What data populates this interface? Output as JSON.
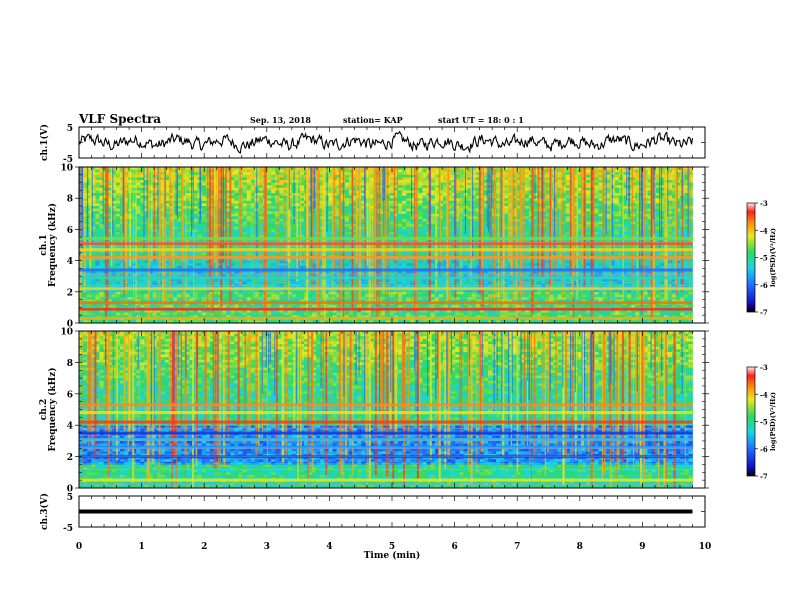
{
  "header": {
    "title": "VLF Spectra",
    "date": "Sep. 13, 2018",
    "station": "station= KAP",
    "start": "start  UT =   18: 0  : 1"
  },
  "chart_data": [
    {
      "type": "line",
      "name": "ch1-waveform",
      "ylabel": "ch.1(V)",
      "ylim": [
        -5,
        5
      ],
      "yticks": [
        "5",
        "-5"
      ],
      "xlim": [
        0,
        10
      ],
      "x_end": 9.8,
      "amplitude_range": [
        -3.5,
        3.5
      ]
    },
    {
      "type": "heatmap",
      "name": "ch1-spectrogram",
      "ylabel": "ch.1\nFrequency  (kHz)",
      "ylim": [
        0,
        10
      ],
      "yticks": [
        "0",
        "2",
        "4",
        "6",
        "8",
        "10"
      ],
      "xlim": [
        0,
        10
      ],
      "x_end": 9.8,
      "colorbar": {
        "label": "log(PSD)(V²/Hz)",
        "range": [
          -7,
          -3
        ],
        "ticks": [
          "-3",
          "-4",
          "-5",
          "-6",
          "-7"
        ]
      },
      "bands": [
        {
          "f": 0.3,
          "level": 0.78
        },
        {
          "f": 0.9,
          "level": 0.92
        },
        {
          "f": 1.3,
          "level": 0.85
        },
        {
          "f": 2.2,
          "level": 0.7
        },
        {
          "f": 2.9,
          "level": 0.45
        },
        {
          "f": 3.4,
          "level": 0.25
        },
        {
          "f": 4.2,
          "level": 0.8
        },
        {
          "f": 4.7,
          "level": 0.72
        },
        {
          "f": 5.1,
          "level": 0.88
        },
        {
          "f": 5.4,
          "level": 0.6
        }
      ]
    },
    {
      "type": "heatmap",
      "name": "ch2-spectrogram",
      "ylabel": "ch.2\nFrequency  (kHz)",
      "ylim": [
        0,
        10
      ],
      "yticks": [
        "0",
        "2",
        "4",
        "6",
        "8",
        "10"
      ],
      "xlim": [
        0,
        10
      ],
      "x_end": 9.8,
      "colorbar": {
        "label": "log(PSD)(V²/Hz)",
        "range": [
          -7,
          -3
        ],
        "ticks": [
          "-3",
          "-4",
          "-5",
          "-6",
          "-7"
        ]
      },
      "bands": [
        {
          "f": 0.5,
          "level": 0.7
        },
        {
          "f": 2.0,
          "level": 0.18
        },
        {
          "f": 2.6,
          "level": 0.3
        },
        {
          "f": 3.1,
          "level": 0.35
        },
        {
          "f": 3.5,
          "level": 0.15
        },
        {
          "f": 4.2,
          "level": 0.9
        },
        {
          "f": 4.8,
          "level": 0.7
        },
        {
          "f": 5.3,
          "level": 0.82
        }
      ]
    },
    {
      "type": "line",
      "name": "ch3-waveform",
      "ylabel": "ch.3(V)",
      "ylim": [
        -5,
        5
      ],
      "yticks": [
        "5",
        "-5"
      ],
      "xlim": [
        0,
        10
      ],
      "x_end": 9.8,
      "level": 0
    }
  ],
  "xaxis": {
    "label": "Time  (min)",
    "ticks": [
      "0",
      "1",
      "2",
      "3",
      "4",
      "5",
      "6",
      "7",
      "8",
      "9",
      "10"
    ]
  }
}
